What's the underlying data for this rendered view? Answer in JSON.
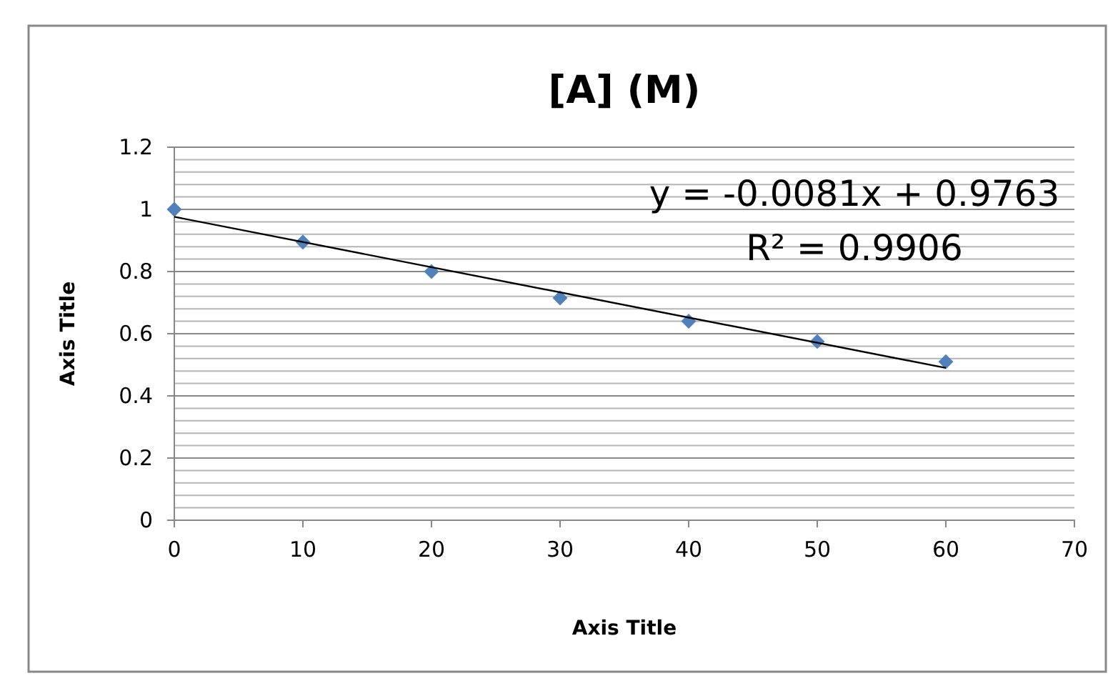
{
  "chart_data": {
    "type": "scatter",
    "title": "[A] (M)",
    "xlabel": "Axis Title",
    "ylabel": "Axis Title",
    "x": [
      0,
      10,
      20,
      30,
      40,
      50,
      60
    ],
    "series": [
      {
        "type": "scatter",
        "color": "#4f81bd",
        "values": [
          1.0,
          0.895,
          0.8,
          0.715,
          0.64,
          0.575,
          0.51
        ],
        "marker": "diamond"
      },
      {
        "type": "line",
        "color": "#000000",
        "x": [
          0,
          60
        ],
        "values": [
          0.976,
          0.49
        ]
      }
    ],
    "xlim": [
      0,
      70
    ],
    "xticks": [
      0,
      10,
      20,
      30,
      40,
      50,
      60,
      70
    ],
    "ylim": [
      0,
      1.2
    ],
    "yticks": [
      0,
      {
        "value": 0.04,
        "label": null
      },
      {
        "value": 0.08,
        "label": null
      },
      {
        "value": 0.12,
        "label": null
      },
      {
        "value": 0.16,
        "label": null
      },
      0.2,
      {
        "value": 0.24,
        "label": null
      },
      {
        "value": 0.28,
        "label": null
      },
      {
        "value": 0.32,
        "label": null
      },
      {
        "value": 0.36,
        "label": null
      },
      0.4,
      {
        "value": 0.44,
        "label": null
      },
      {
        "value": 0.48,
        "label": null
      },
      {
        "value": 0.52,
        "label": null
      },
      {
        "value": 0.56,
        "label": null
      },
      0.6,
      {
        "value": 0.64,
        "label": null
      },
      {
        "value": 0.68,
        "label": null
      },
      {
        "value": 0.72,
        "label": null
      },
      {
        "value": 0.76,
        "label": null
      },
      0.8,
      {
        "value": 0.84,
        "label": null
      },
      {
        "value": 0.88,
        "label": null
      },
      {
        "value": 0.92,
        "label": null
      },
      {
        "value": 0.96,
        "label": null
      },
      1,
      {
        "value": 1.04,
        "label": null
      },
      {
        "value": 1.08,
        "label": null
      },
      {
        "value": 1.12,
        "label": null
      },
      {
        "value": 1.16,
        "label": null
      },
      1.2
    ],
    "grid": "y",
    "annotations": [
      "y = -0.0081x + 0.9763",
      "R² = 0.9906"
    ]
  }
}
